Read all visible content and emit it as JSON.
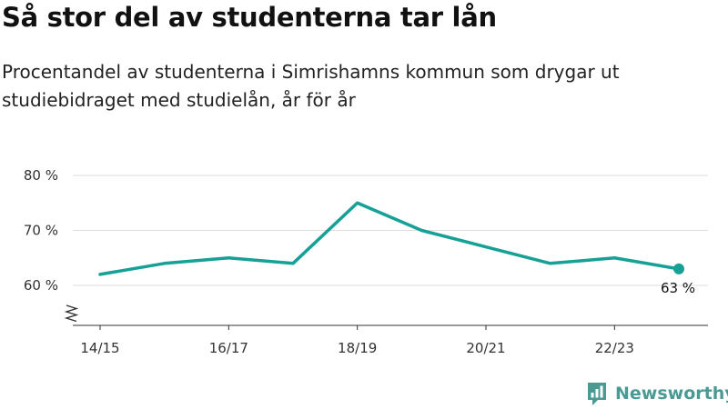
{
  "header": {
    "title": "Så stor del av studenterna tar lån",
    "subtitle": "Procentandel av studenterna i Simrishamns kommun som drygar ut studiebidraget med studielån, år för år"
  },
  "brand": {
    "name": "Newsworthy",
    "logo_icon": "newsworthy-chart-logo-icon",
    "color": "#4a9a93"
  },
  "chart_data": {
    "type": "line",
    "title": "Så stor del av studenterna tar lån",
    "subtitle": "Procentandel av studenterna i Simrishamns kommun som drygar ut studiebidraget med studielån, år för år",
    "x": [
      "14/15",
      "15/16",
      "16/17",
      "17/18",
      "18/19",
      "19/20",
      "20/21",
      "21/22",
      "22/23",
      "23/24"
    ],
    "x_tick_labels": [
      "14/15",
      "16/17",
      "18/19",
      "20/21",
      "22/23"
    ],
    "series": [
      {
        "values": [
          62,
          64,
          65,
          64,
          75,
          70,
          67,
          64,
          65,
          63
        ],
        "color": "#17a096"
      }
    ],
    "y_ticks": [
      60,
      70,
      80
    ],
    "y_tick_labels": [
      "60 %",
      "70 %",
      "80 %"
    ],
    "ylim": [
      52,
      82
    ],
    "y_axis_break": true,
    "grid": true,
    "last_point_label": "63 %",
    "colors": {
      "line": "#17a096",
      "grid": "#dddddd",
      "axis": "#333333"
    }
  }
}
